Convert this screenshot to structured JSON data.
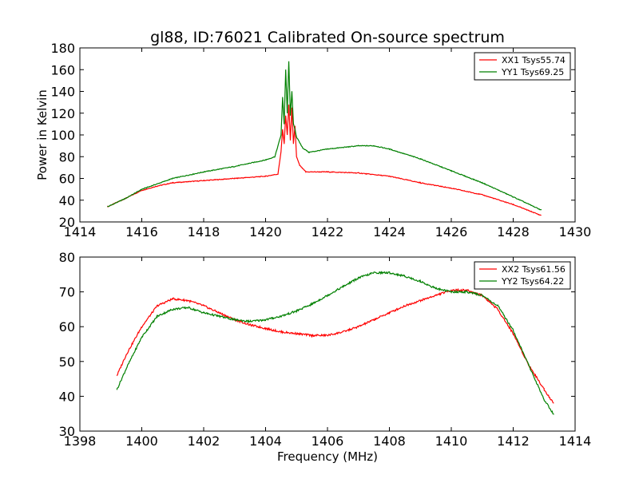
{
  "figure": {
    "title": "gl88, ID:76021 Calibrated On-source spectrum",
    "xlabel": "Frequency (MHz)"
  },
  "chart_data": [
    {
      "type": "line",
      "title": "gl88, ID:76021 Calibrated On-source spectrum",
      "xlabel": "",
      "ylabel": "Power in Kelvin",
      "xlim": [
        1414,
        1430
      ],
      "ylim": [
        20,
        180
      ],
      "xticks": [
        "1414",
        "1416",
        "1418",
        "1420",
        "1422",
        "1424",
        "1426",
        "1428",
        "1430"
      ],
      "yticks": [
        "20",
        "40",
        "60",
        "80",
        "100",
        "120",
        "140",
        "160",
        "180"
      ],
      "legend_position": "top-right",
      "series": [
        {
          "name": "XX1 Tsys55.74",
          "color": "#ff0000",
          "x": [
            1414.9,
            1415.5,
            1416.0,
            1416.5,
            1417.0,
            1418.0,
            1419.0,
            1420.0,
            1420.4,
            1420.5,
            1420.55,
            1420.6,
            1420.65,
            1420.7,
            1420.75,
            1420.8,
            1420.85,
            1420.9,
            1420.95,
            1421.0,
            1421.1,
            1421.3,
            1422.0,
            1423.0,
            1424.0,
            1425.0,
            1426.0,
            1427.0,
            1428.0,
            1428.9
          ],
          "y": [
            34,
            42,
            49,
            53,
            56,
            58,
            60,
            62,
            64,
            85,
            105,
            92,
            118,
            100,
            128,
            95,
            125,
            92,
            108,
            80,
            72,
            66,
            66,
            65,
            62,
            56,
            51,
            45,
            36,
            26
          ]
        },
        {
          "name": "YY1 Tsys69.25",
          "color": "#008000",
          "x": [
            1414.9,
            1415.5,
            1416.0,
            1416.5,
            1417.0,
            1418.0,
            1419.0,
            1420.0,
            1420.3,
            1420.5,
            1420.55,
            1420.6,
            1420.65,
            1420.7,
            1420.75,
            1420.8,
            1420.85,
            1420.9,
            1420.95,
            1421.0,
            1421.2,
            1421.4,
            1422.0,
            1423.0,
            1423.5,
            1424.0,
            1425.0,
            1426.0,
            1427.0,
            1428.0,
            1428.9
          ],
          "y": [
            34,
            42,
            50,
            55,
            60,
            66,
            71,
            77,
            80,
            100,
            135,
            110,
            160,
            120,
            168,
            118,
            140,
            110,
            105,
            98,
            88,
            84,
            87,
            90,
            90,
            87,
            78,
            67,
            56,
            43,
            31
          ]
        }
      ]
    },
    {
      "type": "line",
      "title": "",
      "xlabel": "Frequency (MHz)",
      "ylabel": "",
      "xlim": [
        1398,
        1414
      ],
      "ylim": [
        30,
        80
      ],
      "xticks": [
        "1398",
        "1400",
        "1402",
        "1404",
        "1406",
        "1408",
        "1410",
        "1412",
        "1414"
      ],
      "yticks": [
        "30",
        "40",
        "50",
        "60",
        "70",
        "80"
      ],
      "legend_position": "top-right",
      "series": [
        {
          "name": "XX2 Tsys61.56",
          "color": "#ff0000",
          "x": [
            1399.2,
            1399.5,
            1400.0,
            1400.5,
            1401.0,
            1401.5,
            1402.0,
            1402.5,
            1403.0,
            1403.5,
            1404.0,
            1404.5,
            1405.0,
            1405.5,
            1406.0,
            1406.5,
            1407.0,
            1407.5,
            1408.0,
            1408.5,
            1409.0,
            1409.5,
            1410.0,
            1410.5,
            1411.0,
            1411.5,
            1412.0,
            1412.5,
            1413.0,
            1413.3
          ],
          "y": [
            46,
            52,
            60,
            66,
            68,
            67.5,
            66,
            64,
            62,
            60.5,
            59.5,
            58.5,
            58,
            57.5,
            57.5,
            58.5,
            60,
            62,
            64,
            66,
            67.5,
            69,
            70.5,
            70.5,
            69,
            65,
            58,
            49,
            42,
            38
          ]
        },
        {
          "name": "YY2 Tsys64.22",
          "color": "#008000",
          "x": [
            1399.2,
            1399.5,
            1400.0,
            1400.5,
            1401.0,
            1401.5,
            1402.0,
            1402.5,
            1403.0,
            1403.5,
            1404.0,
            1404.5,
            1405.0,
            1405.5,
            1406.0,
            1406.5,
            1407.0,
            1407.5,
            1408.0,
            1408.5,
            1409.0,
            1409.5,
            1410.0,
            1410.5,
            1411.0,
            1411.5,
            1412.0,
            1412.5,
            1413.0,
            1413.3
          ],
          "y": [
            42,
            48,
            57,
            63,
            65,
            65.5,
            64,
            63,
            62,
            61.5,
            62,
            63,
            64.5,
            66.5,
            69,
            71.5,
            74,
            75.5,
            75.5,
            74.5,
            73,
            71,
            70,
            70,
            69,
            66,
            59,
            49,
            39,
            35
          ]
        }
      ]
    }
  ]
}
